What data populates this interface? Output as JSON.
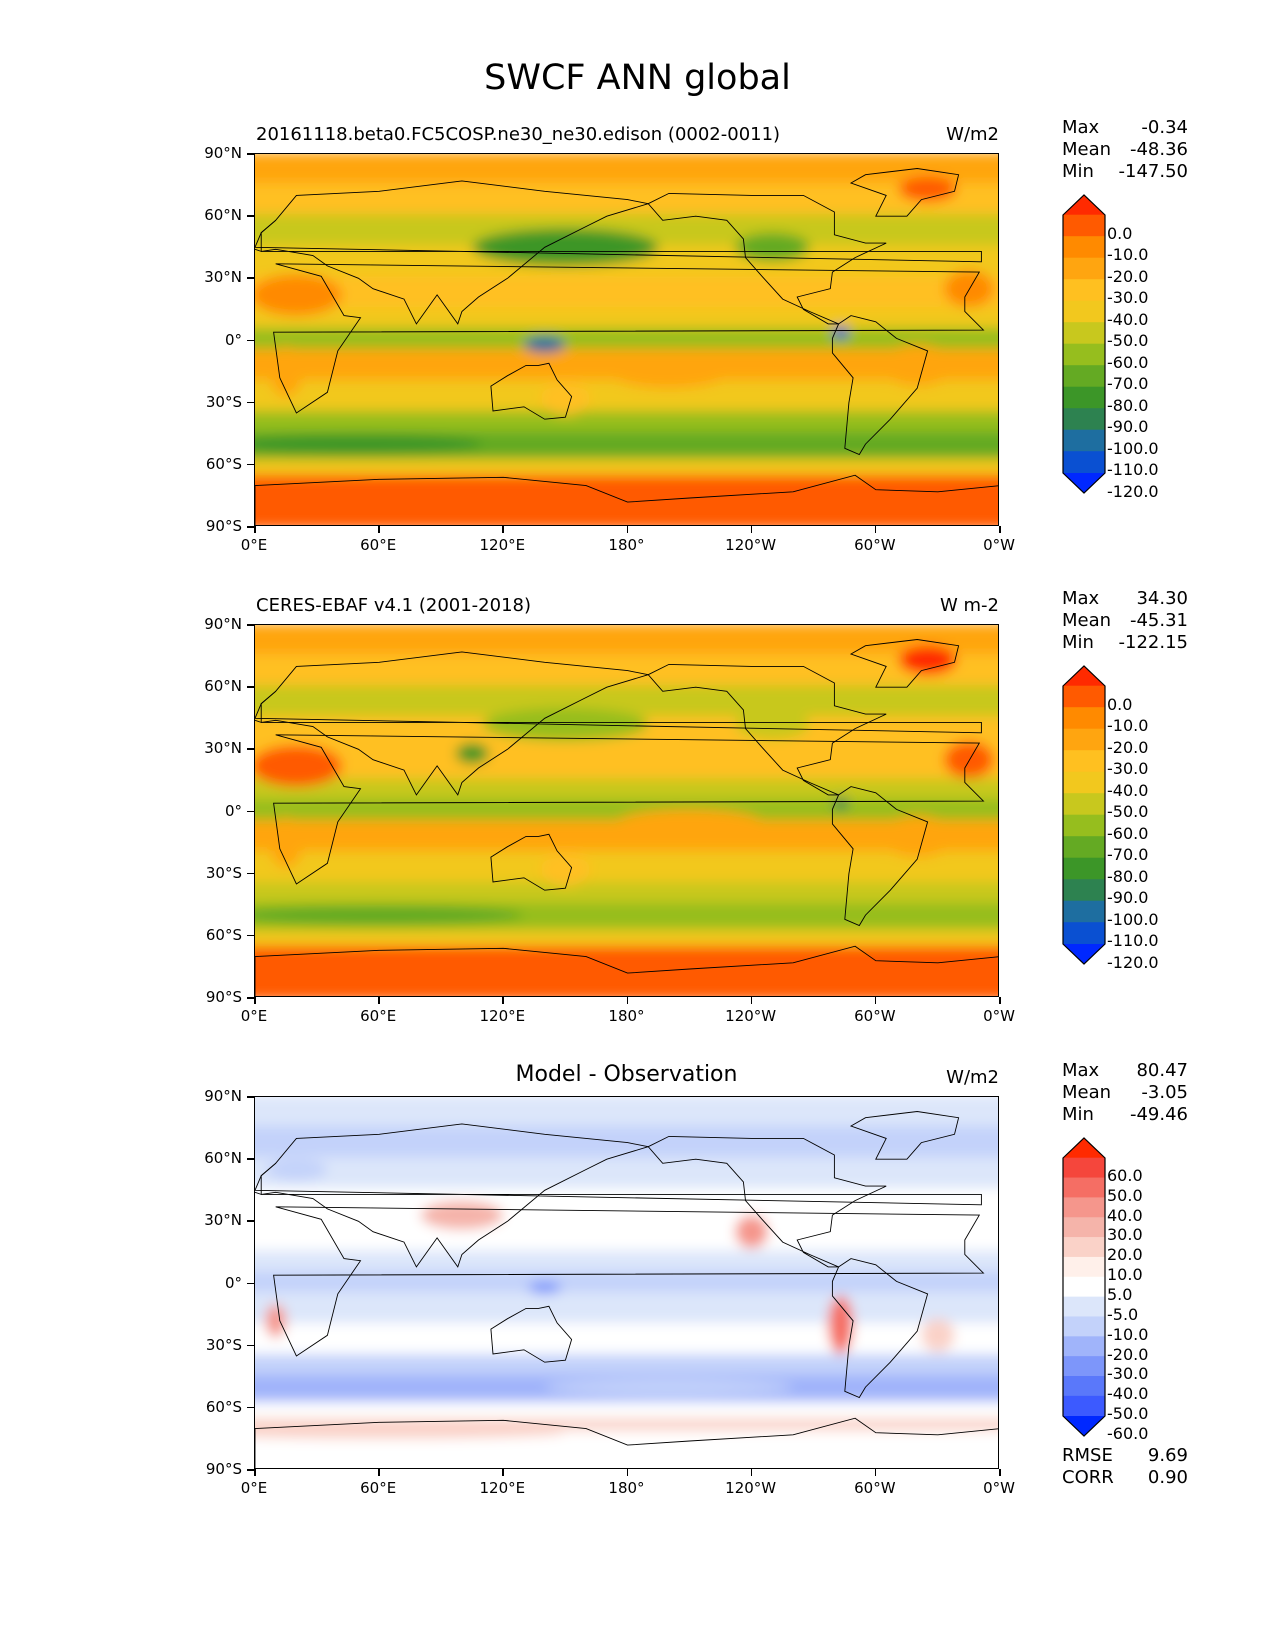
{
  "title": "SWCF ANN global",
  "lat_ticks": [
    "90°N",
    "60°N",
    "30°N",
    "0°",
    "30°S",
    "60°S",
    "90°S"
  ],
  "lon_ticks": [
    "0°E",
    "60°E",
    "120°E",
    "180°",
    "120°W",
    "60°W",
    "0°W"
  ],
  "panels": [
    {
      "left_title": "20161118.beta0.FC5COSP.ne30_ne30.edison (0002-0011)",
      "center_title": "",
      "right_title": "W/m2",
      "stats": [
        {
          "label": "Max",
          "value": "-0.34"
        },
        {
          "label": "Mean",
          "value": "-48.36"
        },
        {
          "label": "Min",
          "value": "-147.50"
        }
      ],
      "colorbar": {
        "levels": [
          "0.0",
          "-10.0",
          "-20.0",
          "-30.0",
          "-40.0",
          "-50.0",
          "-60.0",
          "-70.0",
          "-80.0",
          "-90.0",
          "-100.0",
          "-110.0",
          "-120.0"
        ],
        "colors": [
          "#ff2a00",
          "#ff5a00",
          "#ff8a00",
          "#ffa510",
          "#ffc020",
          "#f2c81e",
          "#c8c81e",
          "#96be1e",
          "#64aa23",
          "#3c9628",
          "#2d8250",
          "#1e6ea0",
          "#0a50d2",
          "#0028ff"
        ]
      },
      "extra_stats": []
    },
    {
      "left_title": "CERES-EBAF v4.1 (2001-2018)",
      "center_title": "",
      "right_title": "W m-2",
      "stats": [
        {
          "label": "Max",
          "value": "34.30"
        },
        {
          "label": "Mean",
          "value": "-45.31"
        },
        {
          "label": "Min",
          "value": "-122.15"
        }
      ],
      "colorbar": {
        "levels": [
          "0.0",
          "-10.0",
          "-20.0",
          "-30.0",
          "-40.0",
          "-50.0",
          "-60.0",
          "-70.0",
          "-80.0",
          "-90.0",
          "-100.0",
          "-110.0",
          "-120.0"
        ],
        "colors": [
          "#ff2a00",
          "#ff5a00",
          "#ff8a00",
          "#ffa510",
          "#ffc020",
          "#f2c81e",
          "#c8c81e",
          "#96be1e",
          "#64aa23",
          "#3c9628",
          "#2d8250",
          "#1e6ea0",
          "#0a50d2",
          "#0028ff"
        ]
      },
      "extra_stats": []
    },
    {
      "left_title": "",
      "center_title": "Model - Observation",
      "right_title": "W/m2",
      "stats": [
        {
          "label": "Max",
          "value": "80.47"
        },
        {
          "label": "Mean",
          "value": "-3.05"
        },
        {
          "label": "Min",
          "value": "-49.46"
        }
      ],
      "colorbar": {
        "levels": [
          "60.0",
          "50.0",
          "40.0",
          "30.0",
          "20.0",
          "10.0",
          "5.0",
          "-5.0",
          "-10.0",
          "-20.0",
          "-30.0",
          "-40.0",
          "-50.0",
          "-60.0"
        ],
        "colors": [
          "#ff2a00",
          "#f5463c",
          "#f56e64",
          "#f5968c",
          "#f5b4aa",
          "#fad2c8",
          "#fff0ea",
          "#ffffff",
          "#dce6fa",
          "#c3d2fa",
          "#a0b4fa",
          "#7d96fa",
          "#5a78fa",
          "#3c5aff",
          "#0028ff"
        ]
      },
      "extra_stats": [
        {
          "label": "RMSE",
          "value": "9.69"
        },
        {
          "label": "CORR",
          "value": "0.90"
        }
      ]
    }
  ]
}
